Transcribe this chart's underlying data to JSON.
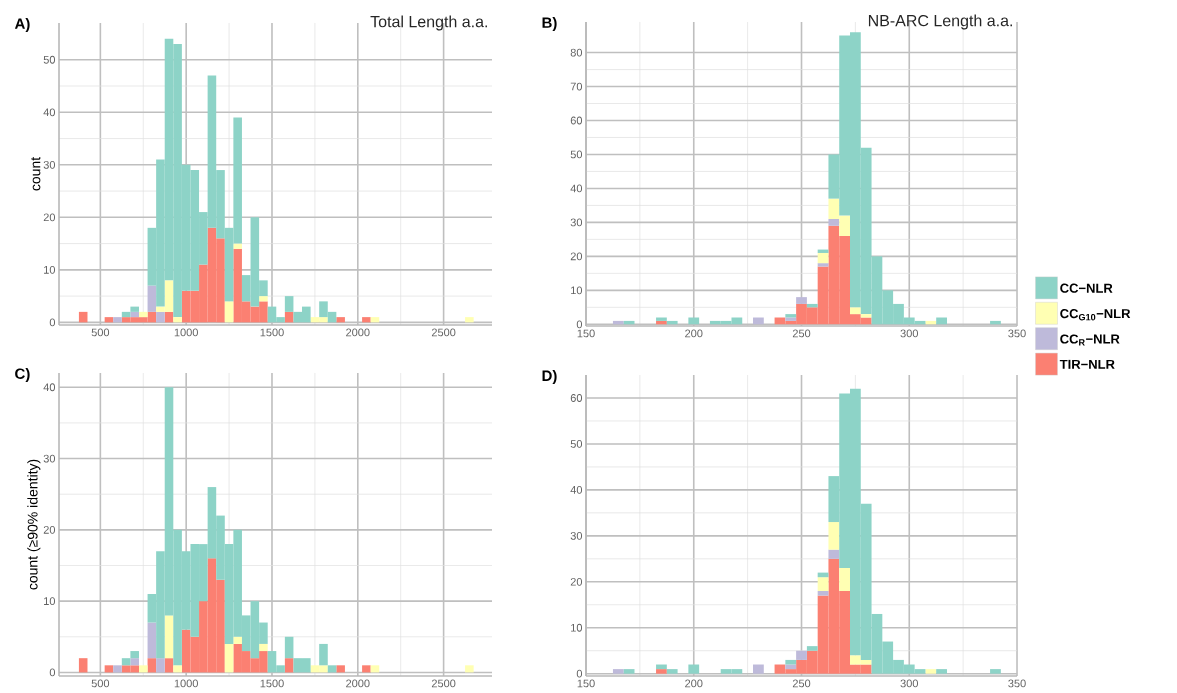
{
  "chart_data": [
    {
      "type": "bar",
      "stacked": true,
      "title": "Total Length a.a.",
      "ylabel": "count",
      "annotations": [
        "A)"
      ],
      "x": [
        400,
        450,
        500,
        550,
        600,
        650,
        700,
        750,
        800,
        850,
        900,
        950,
        1000,
        1050,
        1100,
        1150,
        1200,
        1250,
        1300,
        1350,
        1400,
        1450,
        1500,
        1550,
        1600,
        1650,
        1700,
        1750,
        1800,
        1850,
        1900,
        1950,
        2000,
        2050,
        2100,
        2150,
        2200,
        2250,
        2300,
        2350,
        2400,
        2450,
        2500,
        2550,
        2600,
        2650
      ],
      "series": [
        {
          "color": "#fb8072",
          "values": [
            2,
            0,
            0,
            1,
            0,
            1,
            1,
            1,
            2,
            0,
            2,
            0,
            6,
            6,
            11,
            18,
            16,
            0,
            14,
            4,
            3,
            4,
            0,
            0,
            2,
            0,
            0,
            0,
            0,
            0,
            1,
            0,
            0,
            1,
            0,
            0,
            0,
            0,
            0,
            0,
            0,
            0,
            0,
            0,
            0,
            0
          ]
        },
        {
          "color": "#bebada",
          "values": [
            0,
            0,
            0,
            0,
            1,
            0,
            1,
            0,
            5,
            2,
            0,
            0,
            0,
            0,
            0,
            0,
            0,
            0,
            0,
            0,
            0,
            0,
            0,
            0,
            0,
            0,
            0,
            0,
            0,
            0,
            0,
            0,
            0,
            0,
            0,
            0,
            0,
            0,
            0,
            0,
            0,
            0,
            0,
            0,
            0,
            0
          ]
        },
        {
          "color": "#ffffb3",
          "values": [
            0,
            0,
            0,
            0,
            0,
            0,
            0,
            1,
            0,
            1,
            6,
            1,
            0,
            0,
            0,
            0,
            0,
            4,
            1,
            0,
            0,
            1,
            0,
            0,
            0,
            0,
            0,
            1,
            1,
            0,
            0,
            0,
            0,
            0,
            1,
            0,
            0,
            0,
            0,
            0,
            0,
            0,
            0,
            0,
            0,
            1
          ]
        },
        {
          "color": "#8dd3c7",
          "values": [
            0,
            0,
            0,
            0,
            0,
            1,
            1,
            0,
            11,
            28,
            46,
            52,
            24,
            23,
            10,
            29,
            13,
            14,
            24,
            5,
            17,
            3,
            3,
            1,
            3,
            2,
            3,
            0,
            3,
            2,
            0,
            0,
            0,
            0,
            0,
            0,
            0,
            0,
            0,
            0,
            0,
            0,
            0,
            0,
            0,
            0
          ]
        }
      ],
      "xlim": [
        259,
        2782
      ],
      "ylim": [
        -0.5,
        57
      ],
      "xticks": [
        500,
        1000,
        1500,
        2000,
        2500
      ],
      "yticks": [
        0,
        10,
        20,
        30,
        40,
        50
      ],
      "grid": true
    },
    {
      "type": "bar",
      "stacked": true,
      "title": "NB-ARC Length a.a.",
      "annotations": [
        "B)"
      ],
      "x": [
        165,
        170,
        175,
        180,
        185,
        190,
        195,
        200,
        205,
        210,
        215,
        220,
        225,
        230,
        235,
        240,
        245,
        250,
        255,
        260,
        265,
        270,
        275,
        280,
        285,
        290,
        295,
        300,
        305,
        310,
        315,
        320,
        325,
        330,
        335,
        340
      ],
      "series": [
        {
          "name": "TIR−NLR",
          "color": "#fb8072",
          "values": [
            0,
            0,
            0,
            0,
            1,
            0,
            0,
            0,
            0,
            0,
            0,
            0,
            0,
            0,
            0,
            2,
            1,
            6,
            5,
            17,
            29,
            26,
            3,
            2,
            0,
            0,
            0,
            0,
            0,
            0,
            0,
            0,
            0,
            0,
            0,
            0
          ]
        },
        {
          "name": "CC$_{R}$−NLR",
          "color": "#bebada",
          "values": [
            1,
            0,
            0,
            0,
            0,
            0,
            0,
            0,
            0,
            0,
            0,
            0,
            0,
            2,
            0,
            0,
            1,
            2,
            0,
            1,
            2,
            0,
            0,
            0,
            0,
            0,
            0,
            0,
            0,
            0,
            0,
            0,
            0,
            0,
            0,
            0
          ]
        },
        {
          "name": "CC$_{G10}$−NLR",
          "color": "#ffffb3",
          "values": [
            0,
            0,
            0,
            0,
            0,
            0,
            0,
            0,
            0,
            0,
            0,
            0,
            0,
            0,
            0,
            0,
            0,
            0,
            0,
            3,
            6,
            6,
            2,
            1,
            0,
            0,
            0,
            0,
            0,
            1,
            0,
            0,
            0,
            0,
            0,
            0
          ]
        },
        {
          "name": "CC−NLR",
          "color": "#8dd3c7",
          "values": [
            0,
            1,
            0,
            0,
            1,
            1,
            0,
            2,
            0,
            1,
            1,
            2,
            0,
            0,
            0,
            0,
            1,
            0,
            1,
            1,
            13,
            53,
            81,
            49,
            20,
            10,
            6,
            2,
            1,
            0,
            2,
            0,
            0,
            0,
            0,
            1
          ]
        }
      ],
      "xlim": [
        150,
        350
      ],
      "ylim": [
        -0.5,
        89
      ],
      "xticks": [
        150,
        200,
        250,
        300,
        350
      ],
      "yticks": [
        0,
        10,
        20,
        30,
        40,
        50,
        60,
        70,
        80
      ],
      "grid": true,
      "legend": "right"
    },
    {
      "type": "bar",
      "stacked": true,
      "ylabel": "count (≥90% identity)",
      "annotations": [
        "C)"
      ],
      "x": [
        400,
        450,
        500,
        550,
        600,
        650,
        700,
        750,
        800,
        850,
        900,
        950,
        1000,
        1050,
        1100,
        1150,
        1200,
        1250,
        1300,
        1350,
        1400,
        1450,
        1500,
        1550,
        1600,
        1650,
        1700,
        1750,
        1800,
        1850,
        1900,
        1950,
        2000,
        2050,
        2100,
        2150,
        2200,
        2250,
        2300,
        2350,
        2400,
        2450,
        2500,
        2550,
        2600,
        2650
      ],
      "series": [
        {
          "color": "#fb8072",
          "values": [
            2,
            0,
            0,
            1,
            0,
            1,
            1,
            0,
            2,
            0,
            2,
            0,
            6,
            5,
            10,
            16,
            13,
            0,
            4,
            3,
            2,
            3,
            0,
            0,
            2,
            0,
            0,
            0,
            0,
            0,
            1,
            0,
            0,
            1,
            0,
            0,
            0,
            0,
            0,
            0,
            0,
            0,
            0,
            0,
            0,
            0
          ]
        },
        {
          "color": "#bebada",
          "values": [
            0,
            0,
            0,
            0,
            1,
            0,
            1,
            0,
            5,
            2,
            0,
            0,
            0,
            0,
            0,
            0,
            0,
            0,
            0,
            0,
            0,
            0,
            0,
            0,
            0,
            0,
            0,
            0,
            0,
            0,
            0,
            0,
            0,
            0,
            0,
            0,
            0,
            0,
            0,
            0,
            0,
            0,
            0,
            0,
            0,
            0
          ]
        },
        {
          "color": "#ffffb3",
          "values": [
            0,
            0,
            0,
            0,
            0,
            0,
            0,
            1,
            0,
            0,
            6,
            1,
            0,
            0,
            0,
            0,
            0,
            4,
            1,
            0,
            0,
            1,
            0,
            0,
            0,
            0,
            0,
            1,
            1,
            0,
            0,
            0,
            0,
            0,
            1,
            0,
            0,
            0,
            0,
            0,
            0,
            0,
            0,
            0,
            0,
            1
          ]
        },
        {
          "color": "#8dd3c7",
          "values": [
            0,
            0,
            0,
            0,
            0,
            1,
            1,
            0,
            4,
            15,
            32,
            19,
            11,
            13,
            8,
            10,
            9,
            14,
            15,
            5,
            8,
            3,
            3,
            1,
            3,
            2,
            2,
            0,
            3,
            1,
            0,
            0,
            0,
            0,
            0,
            0,
            0,
            0,
            0,
            0,
            0,
            0,
            0,
            0,
            0,
            0
          ]
        }
      ],
      "xlim": [
        259,
        2782
      ],
      "ylim": [
        -0.5,
        42
      ],
      "xticks": [
        500,
        1000,
        1500,
        2000,
        2500
      ],
      "yticks": [
        0,
        10,
        20,
        30,
        40
      ],
      "grid": true
    },
    {
      "type": "bar",
      "stacked": true,
      "annotations": [
        "D)"
      ],
      "x": [
        165,
        170,
        175,
        180,
        185,
        190,
        195,
        200,
        205,
        210,
        215,
        220,
        225,
        230,
        235,
        240,
        245,
        250,
        255,
        260,
        265,
        270,
        275,
        280,
        285,
        290,
        295,
        300,
        305,
        310,
        315,
        320,
        325,
        330,
        335,
        340
      ],
      "series": [
        {
          "color": "#fb8072",
          "values": [
            0,
            0,
            0,
            0,
            1,
            0,
            0,
            0,
            0,
            0,
            0,
            0,
            0,
            0,
            0,
            2,
            1,
            3,
            5,
            17,
            25,
            18,
            2,
            2,
            0,
            0,
            0,
            0,
            0,
            0,
            0,
            0,
            0,
            0,
            0,
            0
          ]
        },
        {
          "color": "#bebada",
          "values": [
            1,
            0,
            0,
            0,
            0,
            0,
            0,
            0,
            0,
            0,
            0,
            0,
            0,
            2,
            0,
            0,
            1,
            2,
            0,
            1,
            2,
            0,
            0,
            0,
            0,
            0,
            0,
            0,
            0,
            0,
            0,
            0,
            0,
            0,
            0,
            0
          ]
        },
        {
          "color": "#ffffb3",
          "values": [
            0,
            0,
            0,
            0,
            0,
            0,
            0,
            0,
            0,
            0,
            0,
            0,
            0,
            0,
            0,
            0,
            0,
            0,
            0,
            3,
            6,
            5,
            2,
            1,
            0,
            0,
            0,
            0,
            0,
            1,
            0,
            0,
            0,
            0,
            0,
            0
          ]
        },
        {
          "color": "#8dd3c7",
          "values": [
            0,
            1,
            0,
            0,
            1,
            1,
            0,
            2,
            0,
            0,
            1,
            1,
            0,
            0,
            0,
            0,
            1,
            0,
            1,
            1,
            10,
            38,
            58,
            34,
            13,
            7,
            3,
            2,
            1,
            0,
            1,
            0,
            0,
            0,
            0,
            1
          ]
        }
      ],
      "xlim": [
        150,
        350
      ],
      "ylim": [
        -0.5,
        65
      ],
      "xticks": [
        150,
        200,
        250,
        300,
        350
      ],
      "yticks": [
        0,
        10,
        20,
        30,
        40,
        50,
        60
      ],
      "grid": true
    }
  ]
}
